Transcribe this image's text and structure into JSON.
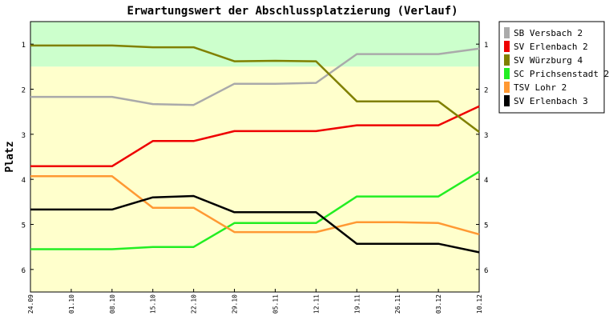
{
  "chart_data": {
    "type": "line",
    "title": "Erwartungswert der Abschlussplatzierung (Verlauf)",
    "xlabel": "",
    "ylabel": "Platz",
    "x": [
      "24.09",
      "01.10",
      "08.10",
      "15.10",
      "22.10",
      "29.10",
      "05.11",
      "12.11",
      "19.11",
      "26.11",
      "03.12",
      "10.12"
    ],
    "ylim": [
      0.5,
      6.5
    ],
    "y_inverted": true,
    "yticks": [
      "1",
      "2",
      "3",
      "4",
      "5",
      "6"
    ],
    "bands": [
      {
        "from": 0.5,
        "to": 1.5,
        "color": "#ccffcc"
      },
      {
        "from": 1.5,
        "to": 6.5,
        "color": "#ffffcc"
      }
    ],
    "legend_position": "right",
    "grid": false,
    "series": [
      {
        "name": "SB Versbach 2",
        "color": "#aaaaaa",
        "values": [
          2.17,
          2.17,
          2.17,
          2.33,
          2.35,
          1.88,
          1.88,
          1.86,
          1.22,
          1.22,
          1.22,
          1.1
        ]
      },
      {
        "name": "SV Erlenbach 2",
        "color": "#ee0000",
        "values": [
          3.71,
          3.71,
          3.71,
          3.15,
          3.15,
          2.93,
          2.93,
          2.93,
          2.8,
          2.8,
          2.8,
          2.38
        ]
      },
      {
        "name": "SV Würzburg 4",
        "color": "#808000",
        "values": [
          1.03,
          1.03,
          1.03,
          1.07,
          1.07,
          1.38,
          1.37,
          1.38,
          2.27,
          2.27,
          2.27,
          2.95
        ]
      },
      {
        "name": "SC Prichsenstadt 2",
        "color": "#22ee22",
        "values": [
          5.55,
          5.55,
          5.55,
          5.5,
          5.5,
          4.97,
          4.97,
          4.97,
          4.38,
          4.38,
          4.38,
          3.83
        ]
      },
      {
        "name": "TSV Lohr 2",
        "color": "#ff9933",
        "values": [
          3.93,
          3.93,
          3.93,
          4.63,
          4.63,
          5.17,
          5.17,
          5.17,
          4.95,
          4.95,
          4.97,
          5.22
        ]
      },
      {
        "name": "SV Erlenbach 3",
        "color": "#000000",
        "values": [
          4.67,
          4.67,
          4.67,
          4.4,
          4.37,
          4.73,
          4.73,
          4.73,
          5.43,
          5.43,
          5.43,
          5.62
        ]
      }
    ]
  }
}
